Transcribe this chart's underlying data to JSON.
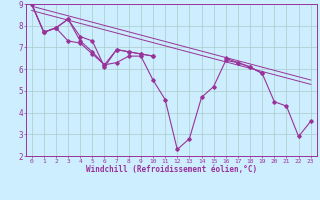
{
  "background_color": "#cceeff",
  "grid_color": "#aacccc",
  "line_color": "#993399",
  "marker_color": "#993399",
  "xlabel": "Windchill (Refroidissement éolien,°C)",
  "xlim": [
    -0.5,
    23.5
  ],
  "ylim": [
    2,
    9
  ],
  "xticks": [
    0,
    1,
    2,
    3,
    4,
    5,
    6,
    7,
    8,
    9,
    10,
    11,
    12,
    13,
    14,
    15,
    16,
    17,
    18,
    19,
    20,
    21,
    22,
    23
  ],
  "yticks": [
    2,
    3,
    4,
    5,
    6,
    7,
    8,
    9
  ],
  "series": [
    [
      9.0,
      7.7,
      7.9,
      8.3,
      7.3,
      6.8,
      6.2,
      6.3,
      6.6,
      6.6,
      5.5,
      4.6,
      2.3,
      2.8,
      4.7,
      5.2,
      6.4,
      6.3,
      6.1,
      5.8,
      4.5,
      4.3,
      2.9,
      3.6
    ],
    [
      9.0,
      7.7,
      7.9,
      7.3,
      7.2,
      6.7,
      6.2,
      6.9,
      6.8,
      6.7,
      6.6,
      null,
      null,
      null,
      null,
      null,
      null,
      null,
      null,
      null,
      null,
      null,
      null,
      null
    ],
    [
      9.0,
      7.7,
      7.9,
      8.3,
      7.5,
      7.3,
      6.1,
      6.9,
      6.8,
      6.7,
      6.6,
      null,
      null,
      null,
      null,
      null,
      null,
      null,
      null,
      null,
      null,
      null,
      null,
      null
    ],
    [
      null,
      null,
      null,
      null,
      null,
      null,
      null,
      null,
      null,
      null,
      null,
      null,
      null,
      null,
      null,
      null,
      6.5,
      6.3,
      6.1,
      5.8,
      null,
      null,
      null,
      null
    ]
  ],
  "regression_lines": [
    {
      "x0": 0,
      "y0": 8.9,
      "x1": 23,
      "y1": 5.5
    },
    {
      "x0": 0,
      "y0": 8.7,
      "x1": 23,
      "y1": 5.3
    }
  ]
}
